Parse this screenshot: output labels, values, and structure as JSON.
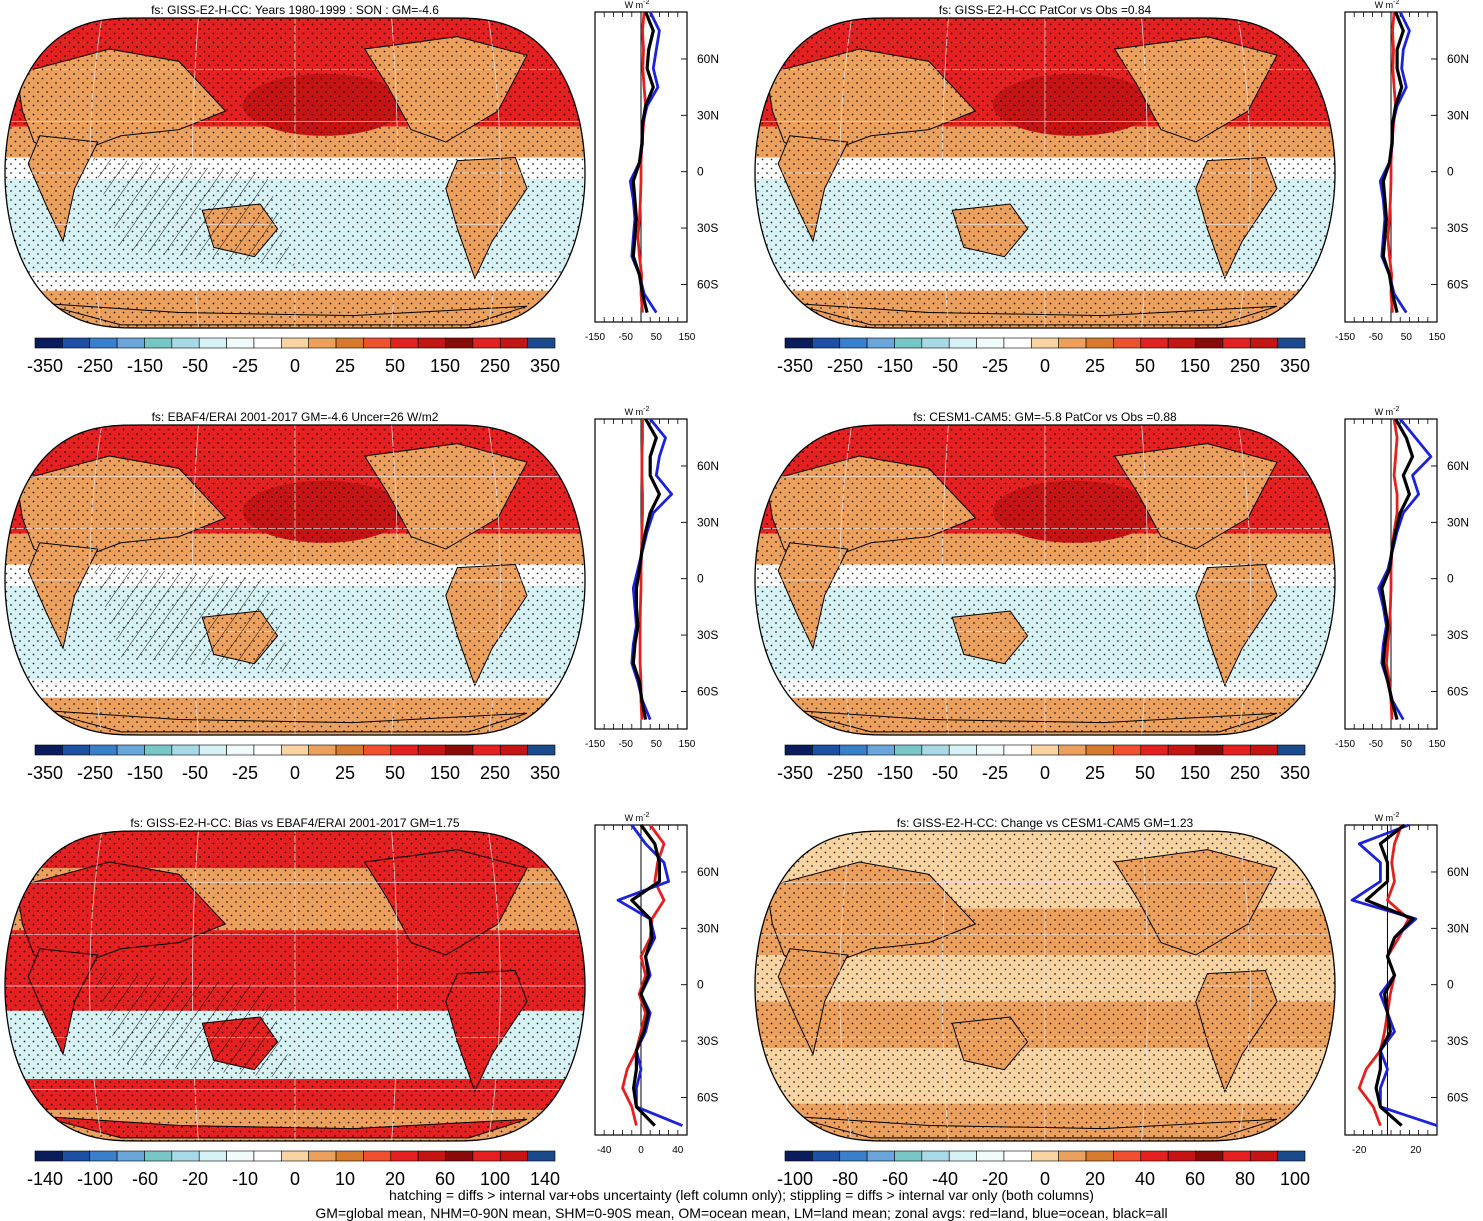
{
  "colors": {
    "land": "#f7d4a2",
    "ocean_pale": "#d6f2f4",
    "orange": "#eca05e",
    "red": "#e42020",
    "darkred": "#c61414",
    "palette": [
      "#0b1c5c",
      "#1d4fa3",
      "#3a7fc9",
      "#6aa6da",
      "#78c6c6",
      "#a8d9e6",
      "#d6f2f4",
      "#f2fbfb",
      "#ffffff",
      "#f7d4a2",
      "#eca05e",
      "#d67a2e",
      "#f05030",
      "#e42020",
      "#c61414",
      "#8a0a0a",
      "#e42020",
      "#c61414",
      "#1a4a8a"
    ],
    "zonal_land": "#e32020",
    "zonal_ocean": "#1c22d9",
    "zonal_all": "#000000"
  },
  "panels": [
    {
      "title": "fs: GISS-E2-H-CC: Years 1980-1999 : SON : GM=-4.6",
      "map": "a"
    },
    {
      "title": "fs: GISS-E2-H-CC PatCor vs Obs =0.84",
      "map": "b"
    },
    {
      "title": "fs: EBAF4/ERAI 2001-2017 GM=-4.6 Uncer=26 W/m2",
      "map": "c"
    },
    {
      "title": "fs: CESM1-CAM5: GM=-5.8 PatCor vs Obs =0.88",
      "map": "d"
    },
    {
      "title": "fs: GISS-E2-H-CC: Bias vs EBAF4/ERAI 2001-2017  GM=1.75",
      "map": "e"
    },
    {
      "title": "fs: GISS-E2-H-CC: Change vs CESM1-CAM5 GM=1.23",
      "map": "f"
    }
  ],
  "colorbars": [
    [
      "-350",
      "-250",
      "-150",
      "-50",
      "-25",
      "0",
      "25",
      "50",
      "150",
      "250",
      "350"
    ],
    [
      "-350",
      "-250",
      "-150",
      "-50",
      "-25",
      "0",
      "25",
      "50",
      "150",
      "250",
      "350"
    ],
    [
      "-350",
      "-250",
      "-150",
      "-50",
      "-25",
      "0",
      "25",
      "50",
      "150",
      "250",
      "350"
    ],
    [
      "-350",
      "-250",
      "-150",
      "-50",
      "-25",
      "0",
      "25",
      "50",
      "150",
      "250",
      "350"
    ],
    [
      "-140",
      "-100",
      "-60",
      "-20",
      "-10",
      "0",
      "10",
      "20",
      "60",
      "100",
      "140"
    ],
    [
      "-100",
      "-80",
      "-60",
      "-40",
      "-20",
      "0",
      "20",
      "40",
      "60",
      "80",
      "100"
    ]
  ],
  "zonal_common": {
    "unit": "W m",
    "unit_exp": "-2",
    "lat_labels": [
      "60N",
      "30N",
      "0",
      "30S",
      "60S"
    ],
    "lat_values": [
      60,
      30,
      0,
      -30,
      -60
    ]
  },
  "footer": {
    "line1": "hatching = diffs > internal var+obs uncertainty (left column only); stippling = diffs > internal var only (both columns)",
    "line2": "GM=global mean, NHM=0-90N mean, SHM=0-90S mean, OM=ocean mean, LM=land mean; zonal avgs: red=land, blue=ocean, black=all"
  },
  "chart_data": [
    {
      "type": "line",
      "title": "fs: GISS-E2-H-CC: Years 1980-1999 : SON : GM=-4.6",
      "ylabel": "W m-2",
      "xlim": [
        -150,
        150
      ],
      "ylim": [
        -80,
        85
      ],
      "x_tick_labels": [
        "-150",
        "-50",
        "50",
        "150"
      ],
      "y_tick_labels": [
        "60N",
        "30N",
        "0",
        "30S",
        "60S"
      ],
      "series": [
        {
          "name": "red=land",
          "lat": [
            85,
            75,
            65,
            55,
            45,
            35,
            25,
            15,
            5,
            -5,
            -15,
            -25,
            -35,
            -45,
            -55,
            -65,
            -75
          ],
          "values": [
            10,
            5,
            8,
            6,
            10,
            15,
            8,
            3,
            0,
            0,
            -2,
            -5,
            -10,
            -5,
            2,
            0,
            5
          ]
        },
        {
          "name": "blue=ocean",
          "lat": [
            85,
            75,
            65,
            55,
            45,
            35,
            25,
            15,
            5,
            -5,
            -15,
            -25,
            -35,
            -45,
            -55,
            -65,
            -75
          ],
          "values": [
            30,
            60,
            50,
            40,
            55,
            20,
            5,
            5,
            -5,
            -35,
            -25,
            -20,
            -25,
            -30,
            -5,
            10,
            50
          ]
        },
        {
          "name": "black=all",
          "lat": [
            85,
            75,
            65,
            55,
            45,
            35,
            25,
            15,
            5,
            -5,
            -15,
            -25,
            -35,
            -45,
            -55,
            -65,
            -75
          ],
          "values": [
            15,
            40,
            25,
            20,
            40,
            15,
            5,
            3,
            -5,
            -25,
            -20,
            -15,
            -20,
            -25,
            -5,
            5,
            20
          ]
        }
      ]
    },
    {
      "type": "line",
      "title": "fs: GISS-E2-H-CC PatCor vs Obs =0.84",
      "ylabel": "W m-2",
      "xlim": [
        -150,
        150
      ],
      "ylim": [
        -80,
        85
      ],
      "x_tick_labels": [
        "-150",
        "-50",
        "50",
        "150"
      ],
      "y_tick_labels": [
        "60N",
        "30N",
        "0",
        "30S",
        "60S"
      ],
      "series": [
        {
          "name": "red=land",
          "lat": [
            85,
            75,
            65,
            55,
            45,
            35,
            25,
            15,
            5,
            -5,
            -15,
            -25,
            -35,
            -45,
            -55,
            -65,
            -75
          ],
          "values": [
            10,
            5,
            8,
            6,
            10,
            15,
            8,
            3,
            0,
            0,
            -2,
            -5,
            -10,
            -5,
            2,
            0,
            5
          ]
        },
        {
          "name": "blue=ocean",
          "lat": [
            85,
            75,
            65,
            55,
            45,
            35,
            25,
            15,
            5,
            -5,
            -15,
            -25,
            -35,
            -45,
            -55,
            -65,
            -75
          ],
          "values": [
            30,
            60,
            40,
            35,
            50,
            20,
            5,
            5,
            -5,
            -35,
            -25,
            -20,
            -25,
            -30,
            -5,
            10,
            50
          ]
        },
        {
          "name": "black=all",
          "lat": [
            85,
            75,
            65,
            55,
            45,
            35,
            25,
            15,
            5,
            -5,
            -15,
            -25,
            -35,
            -45,
            -55,
            -65,
            -75
          ],
          "values": [
            15,
            40,
            20,
            20,
            35,
            15,
            5,
            3,
            -5,
            -25,
            -20,
            -15,
            -20,
            -25,
            -5,
            5,
            20
          ]
        }
      ]
    },
    {
      "type": "line",
      "title": "fs: EBAF4/ERAI 2001-2017 GM=-4.6 Uncer=26 W/m2",
      "ylabel": "W m-2",
      "xlim": [
        -150,
        150
      ],
      "ylim": [
        -80,
        85
      ],
      "x_tick_labels": [
        "-150",
        "-50",
        "50",
        "150"
      ],
      "y_tick_labels": [
        "60N",
        "30N",
        "0",
        "30S",
        "60S"
      ],
      "series": [
        {
          "name": "red=land",
          "lat": [
            85,
            75,
            65,
            55,
            45,
            35,
            25,
            15,
            5,
            -5,
            -15,
            -25,
            -35,
            -45,
            -55,
            -65,
            -75
          ],
          "values": [
            5,
            5,
            3,
            3,
            5,
            5,
            3,
            2,
            0,
            0,
            -2,
            -3,
            -3,
            -3,
            0,
            0,
            3
          ]
        },
        {
          "name": "blue=ocean",
          "lat": [
            85,
            75,
            65,
            55,
            45,
            35,
            25,
            15,
            5,
            -5,
            -15,
            -25,
            -35,
            -45,
            -55,
            -65,
            -75
          ],
          "values": [
            30,
            80,
            60,
            50,
            100,
            40,
            20,
            5,
            -10,
            -25,
            -20,
            -15,
            -25,
            -30,
            -10,
            5,
            30
          ]
        },
        {
          "name": "black=all",
          "lat": [
            85,
            75,
            65,
            55,
            45,
            35,
            25,
            15,
            5,
            -5,
            -15,
            -25,
            -35,
            -45,
            -55,
            -65,
            -75
          ],
          "values": [
            15,
            50,
            30,
            30,
            60,
            30,
            15,
            3,
            -5,
            -15,
            -15,
            -10,
            -20,
            -25,
            -5,
            3,
            15
          ]
        }
      ]
    },
    {
      "type": "line",
      "title": "fs: CESM1-CAM5: GM=-5.8 PatCor vs Obs =0.88",
      "ylabel": "W m-2",
      "xlim": [
        -150,
        150
      ],
      "ylim": [
        -80,
        85
      ],
      "x_tick_labels": [
        "-150",
        "-50",
        "50",
        "150"
      ],
      "y_tick_labels": [
        "60N",
        "30N",
        "0",
        "30S",
        "60S"
      ],
      "series": [
        {
          "name": "red=land",
          "lat": [
            85,
            75,
            65,
            55,
            45,
            35,
            25,
            15,
            5,
            -5,
            -15,
            -25,
            -35,
            -45,
            -55,
            -65,
            -75
          ],
          "values": [
            10,
            20,
            15,
            10,
            20,
            20,
            10,
            3,
            0,
            0,
            -2,
            -5,
            -10,
            -15,
            -5,
            0,
            3
          ]
        },
        {
          "name": "blue=ocean",
          "lat": [
            85,
            75,
            65,
            55,
            45,
            35,
            25,
            15,
            5,
            -5,
            -15,
            -25,
            -35,
            -45,
            -55,
            -65,
            -75
          ],
          "values": [
            30,
            80,
            130,
            70,
            90,
            40,
            20,
            5,
            -10,
            -40,
            -25,
            -15,
            -25,
            -30,
            -10,
            5,
            40
          ]
        },
        {
          "name": "black=all",
          "lat": [
            85,
            75,
            65,
            55,
            45,
            35,
            25,
            15,
            5,
            -5,
            -15,
            -25,
            -35,
            -45,
            -55,
            -65,
            -75
          ],
          "values": [
            15,
            50,
            70,
            40,
            60,
            30,
            15,
            3,
            -5,
            -30,
            -20,
            -10,
            -20,
            -25,
            -10,
            3,
            20
          ]
        }
      ]
    },
    {
      "type": "line",
      "title": "fs: GISS-E2-H-CC: Bias vs EBAF4/ERAI 2001-2017  GM=1.75",
      "ylabel": "W m-2",
      "xlim": [
        -50,
        50
      ],
      "ylim": [
        -80,
        85
      ],
      "x_tick_labels": [
        "-40",
        "0",
        "40"
      ],
      "y_tick_labels": [
        "60N",
        "30N",
        "0",
        "30S",
        "60S"
      ],
      "series": [
        {
          "name": "red=land",
          "lat": [
            85,
            75,
            65,
            55,
            45,
            35,
            25,
            15,
            5,
            -5,
            -15,
            -25,
            -35,
            -45,
            -55,
            -65,
            -75
          ],
          "values": [
            10,
            25,
            18,
            15,
            25,
            12,
            10,
            0,
            5,
            -2,
            5,
            0,
            -5,
            -15,
            -20,
            -10,
            -5
          ]
        },
        {
          "name": "blue=ocean",
          "lat": [
            85,
            75,
            65,
            55,
            45,
            35,
            25,
            15,
            5,
            -5,
            -15,
            -25,
            -35,
            -45,
            -55,
            -65,
            -75
          ],
          "values": [
            -10,
            5,
            25,
            30,
            -25,
            10,
            15,
            5,
            10,
            0,
            10,
            5,
            -5,
            0,
            -5,
            -5,
            45
          ]
        },
        {
          "name": "black=all",
          "lat": [
            85,
            75,
            65,
            55,
            45,
            35,
            25,
            15,
            5,
            -5,
            -15,
            -25,
            -35,
            -45,
            -55,
            -65,
            -75
          ],
          "values": [
            0,
            15,
            20,
            20,
            -10,
            10,
            12,
            5,
            8,
            0,
            8,
            3,
            -5,
            -5,
            -8,
            -5,
            15
          ]
        }
      ]
    },
    {
      "type": "line",
      "title": "fs: GISS-E2-H-CC: Change vs CESM1-CAM5 GM=1.23",
      "ylabel": "W m-2",
      "xlim": [
        -30,
        35
      ],
      "ylim": [
        -80,
        85
      ],
      "x_tick_labels": [
        "-20",
        "20"
      ],
      "y_tick_labels": [
        "60N",
        "30N",
        "0",
        "30S",
        "60S"
      ],
      "series": [
        {
          "name": "red=land",
          "lat": [
            85,
            75,
            65,
            55,
            45,
            35,
            25,
            15,
            5,
            -5,
            -15,
            -25,
            -35,
            -45,
            -55,
            -65,
            -75
          ],
          "values": [
            10,
            5,
            3,
            5,
            0,
            15,
            8,
            0,
            5,
            2,
            0,
            -2,
            -5,
            -15,
            -20,
            -10,
            -5
          ]
        },
        {
          "name": "blue=ocean",
          "lat": [
            85,
            75,
            65,
            55,
            45,
            35,
            25,
            15,
            5,
            -5,
            -15,
            -25,
            -35,
            -45,
            -55,
            -65,
            -75
          ],
          "values": [
            15,
            -20,
            -5,
            -5,
            -25,
            20,
            5,
            0,
            5,
            -5,
            0,
            5,
            -5,
            0,
            -5,
            -5,
            35
          ]
        },
        {
          "name": "black=all",
          "lat": [
            85,
            75,
            65,
            55,
            45,
            35,
            25,
            15,
            5,
            -5,
            -15,
            -25,
            -35,
            -45,
            -55,
            -65,
            -75
          ],
          "values": [
            12,
            -5,
            0,
            0,
            -15,
            18,
            5,
            0,
            5,
            -2,
            0,
            2,
            -5,
            -5,
            -8,
            -5,
            10
          ]
        }
      ]
    }
  ]
}
